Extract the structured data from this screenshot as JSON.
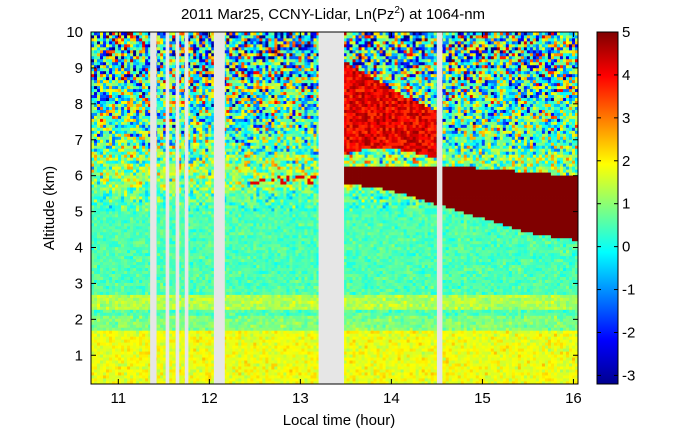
{
  "chart_data": {
    "type": "heatmap",
    "title": "2011 Mar25, CCNY-Lidar, Ln(Pz^2) at 1064-nm",
    "title_parts": {
      "main": "2011 Mar25, CCNY-Lidar, Ln(Pz",
      "sup": "2",
      "tail": ") at 1064-nm"
    },
    "xlabel": "Local time (hour)",
    "ylabel": "Altitude (km)",
    "xlim": [
      10.7,
      16.05
    ],
    "ylim": [
      0.2,
      10
    ],
    "xticks": [
      11,
      12,
      13,
      14,
      15,
      16
    ],
    "yticks": [
      1,
      2,
      3,
      4,
      5,
      6,
      7,
      8,
      9,
      10
    ],
    "colorbar": {
      "min": -3.2,
      "max": 5,
      "ticks": [
        -3,
        -2,
        -1,
        0,
        1,
        2,
        3,
        4,
        5
      ],
      "colormap": "jet"
    },
    "data_gaps_hours": [
      [
        11.35,
        11.42
      ],
      [
        11.52,
        11.56
      ],
      [
        11.63,
        11.67
      ],
      [
        11.73,
        11.77
      ],
      [
        12.05,
        12.17
      ],
      [
        13.2,
        13.48
      ],
      [
        14.5,
        14.56
      ]
    ],
    "features": {
      "boundary_layer": {
        "from_km": 0.2,
        "to_km": 1.7,
        "value": 1.8
      },
      "residual_layer_km": 2.5,
      "smoke_layer": {
        "time_range": [
          13.48,
          16.05
        ],
        "top_km": [
          6.3,
          6.3,
          6.3,
          6.2,
          6.1,
          6.0
        ],
        "bottom_km": [
          5.8,
          5.6,
          5.2,
          4.8,
          4.4,
          4.2
        ],
        "value": 5
      },
      "upper_plume": {
        "time_range": [
          13.48,
          14.5
        ],
        "top_km": [
          9.2,
          8.7,
          8.2,
          7.8
        ],
        "bottom_km": [
          6.6,
          6.8,
          6.7,
          6.5
        ],
        "value": 4
      }
    }
  }
}
